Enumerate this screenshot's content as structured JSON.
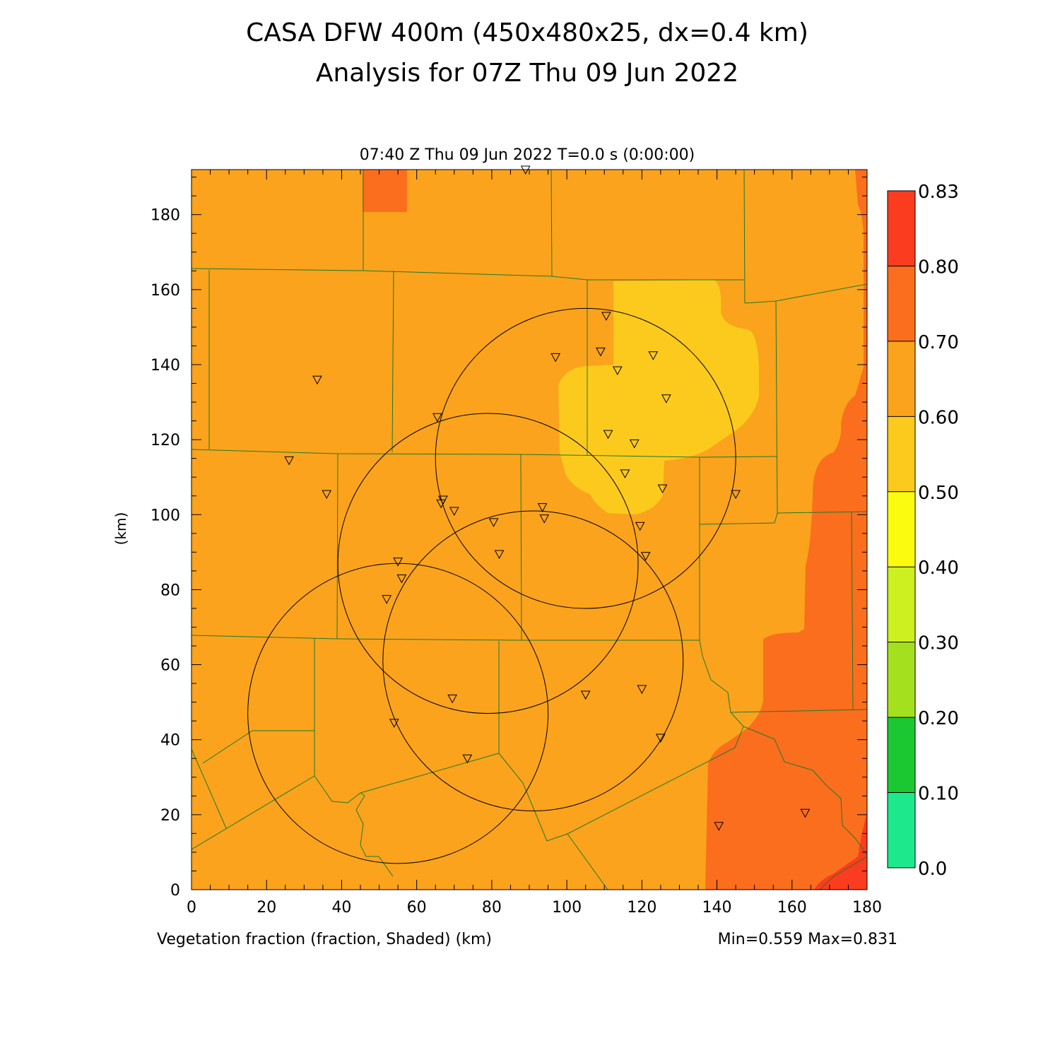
{
  "header": {
    "title_line1": "CASA DFW 400m (450x480x25, dx=0.4 km)",
    "title_line2": "Analysis for 07Z Thu 09 Jun 2022",
    "valid_time": "07:40 Z Thu 09 Jun 2022   T=0.0 s (0:00:00)"
  },
  "footer": {
    "field_label": "Vegetation fraction (fraction, Shaded)  (km)",
    "min_max": "Min=0.559 Max=0.831"
  },
  "map_data": {
    "x_ticks": [
      0,
      20,
      40,
      60,
      80,
      100,
      120,
      140,
      160,
      180
    ],
    "y_ticks": [
      0,
      20,
      40,
      60,
      80,
      100,
      120,
      140,
      160,
      180
    ],
    "x_range_km": [
      0,
      180
    ],
    "y_range_km": [
      0,
      192
    ],
    "y_axis_label": "(km)",
    "colorbar": {
      "levels": [
        "0.0",
        "0.10",
        "0.20",
        "0.30",
        "0.40",
        "0.50",
        "0.60",
        "0.70",
        "0.80",
        "0.83"
      ],
      "colors": [
        "#1ee88c",
        "#1cc832",
        "#a5e01e",
        "#cdf020",
        "#fbfb10",
        "#fcca1c",
        "#fba31c",
        "#fb6e1e",
        "#fb3c1e"
      ]
    },
    "fill_colors": {
      "base": "#fba31c",
      "low": "#fcca1c",
      "high": "#fb6e1e",
      "highest": "#fb3c1e",
      "county_lines": "#1f7a2a"
    },
    "radar_rings": [
      {
        "cx": 105,
        "cy": 115,
        "r": 40
      },
      {
        "cx": 79,
        "cy": 87,
        "r": 40
      },
      {
        "cx": 91,
        "cy": 61,
        "r": 40
      },
      {
        "cx": 55,
        "cy": 47,
        "r": 40
      }
    ],
    "stations": [
      [
        89,
        192
      ],
      [
        110.5,
        153
      ],
      [
        109,
        143.5
      ],
      [
        97,
        142
      ],
      [
        123,
        142.5
      ],
      [
        113.5,
        138.5
      ],
      [
        126.5,
        131
      ],
      [
        33.5,
        136
      ],
      [
        65.5,
        126
      ],
      [
        111,
        121.5
      ],
      [
        118,
        119
      ],
      [
        26,
        114.5
      ],
      [
        115.5,
        111
      ],
      [
        125.5,
        107
      ],
      [
        36,
        105.5
      ],
      [
        145,
        105.5
      ],
      [
        67,
        104
      ],
      [
        66.5,
        103
      ],
      [
        70,
        101
      ],
      [
        93.5,
        102
      ],
      [
        94,
        99
      ],
      [
        80.5,
        98
      ],
      [
        119.5,
        97
      ],
      [
        82,
        89.5
      ],
      [
        121,
        89
      ],
      [
        55,
        87.5
      ],
      [
        56,
        83
      ],
      [
        52,
        77.5
      ],
      [
        105,
        52
      ],
      [
        120,
        53.5
      ],
      [
        69.5,
        51
      ],
      [
        54,
        44.5
      ],
      [
        125,
        40.5
      ],
      [
        73.5,
        35
      ],
      [
        163.5,
        20.5
      ],
      [
        140.5,
        17
      ]
    ]
  }
}
